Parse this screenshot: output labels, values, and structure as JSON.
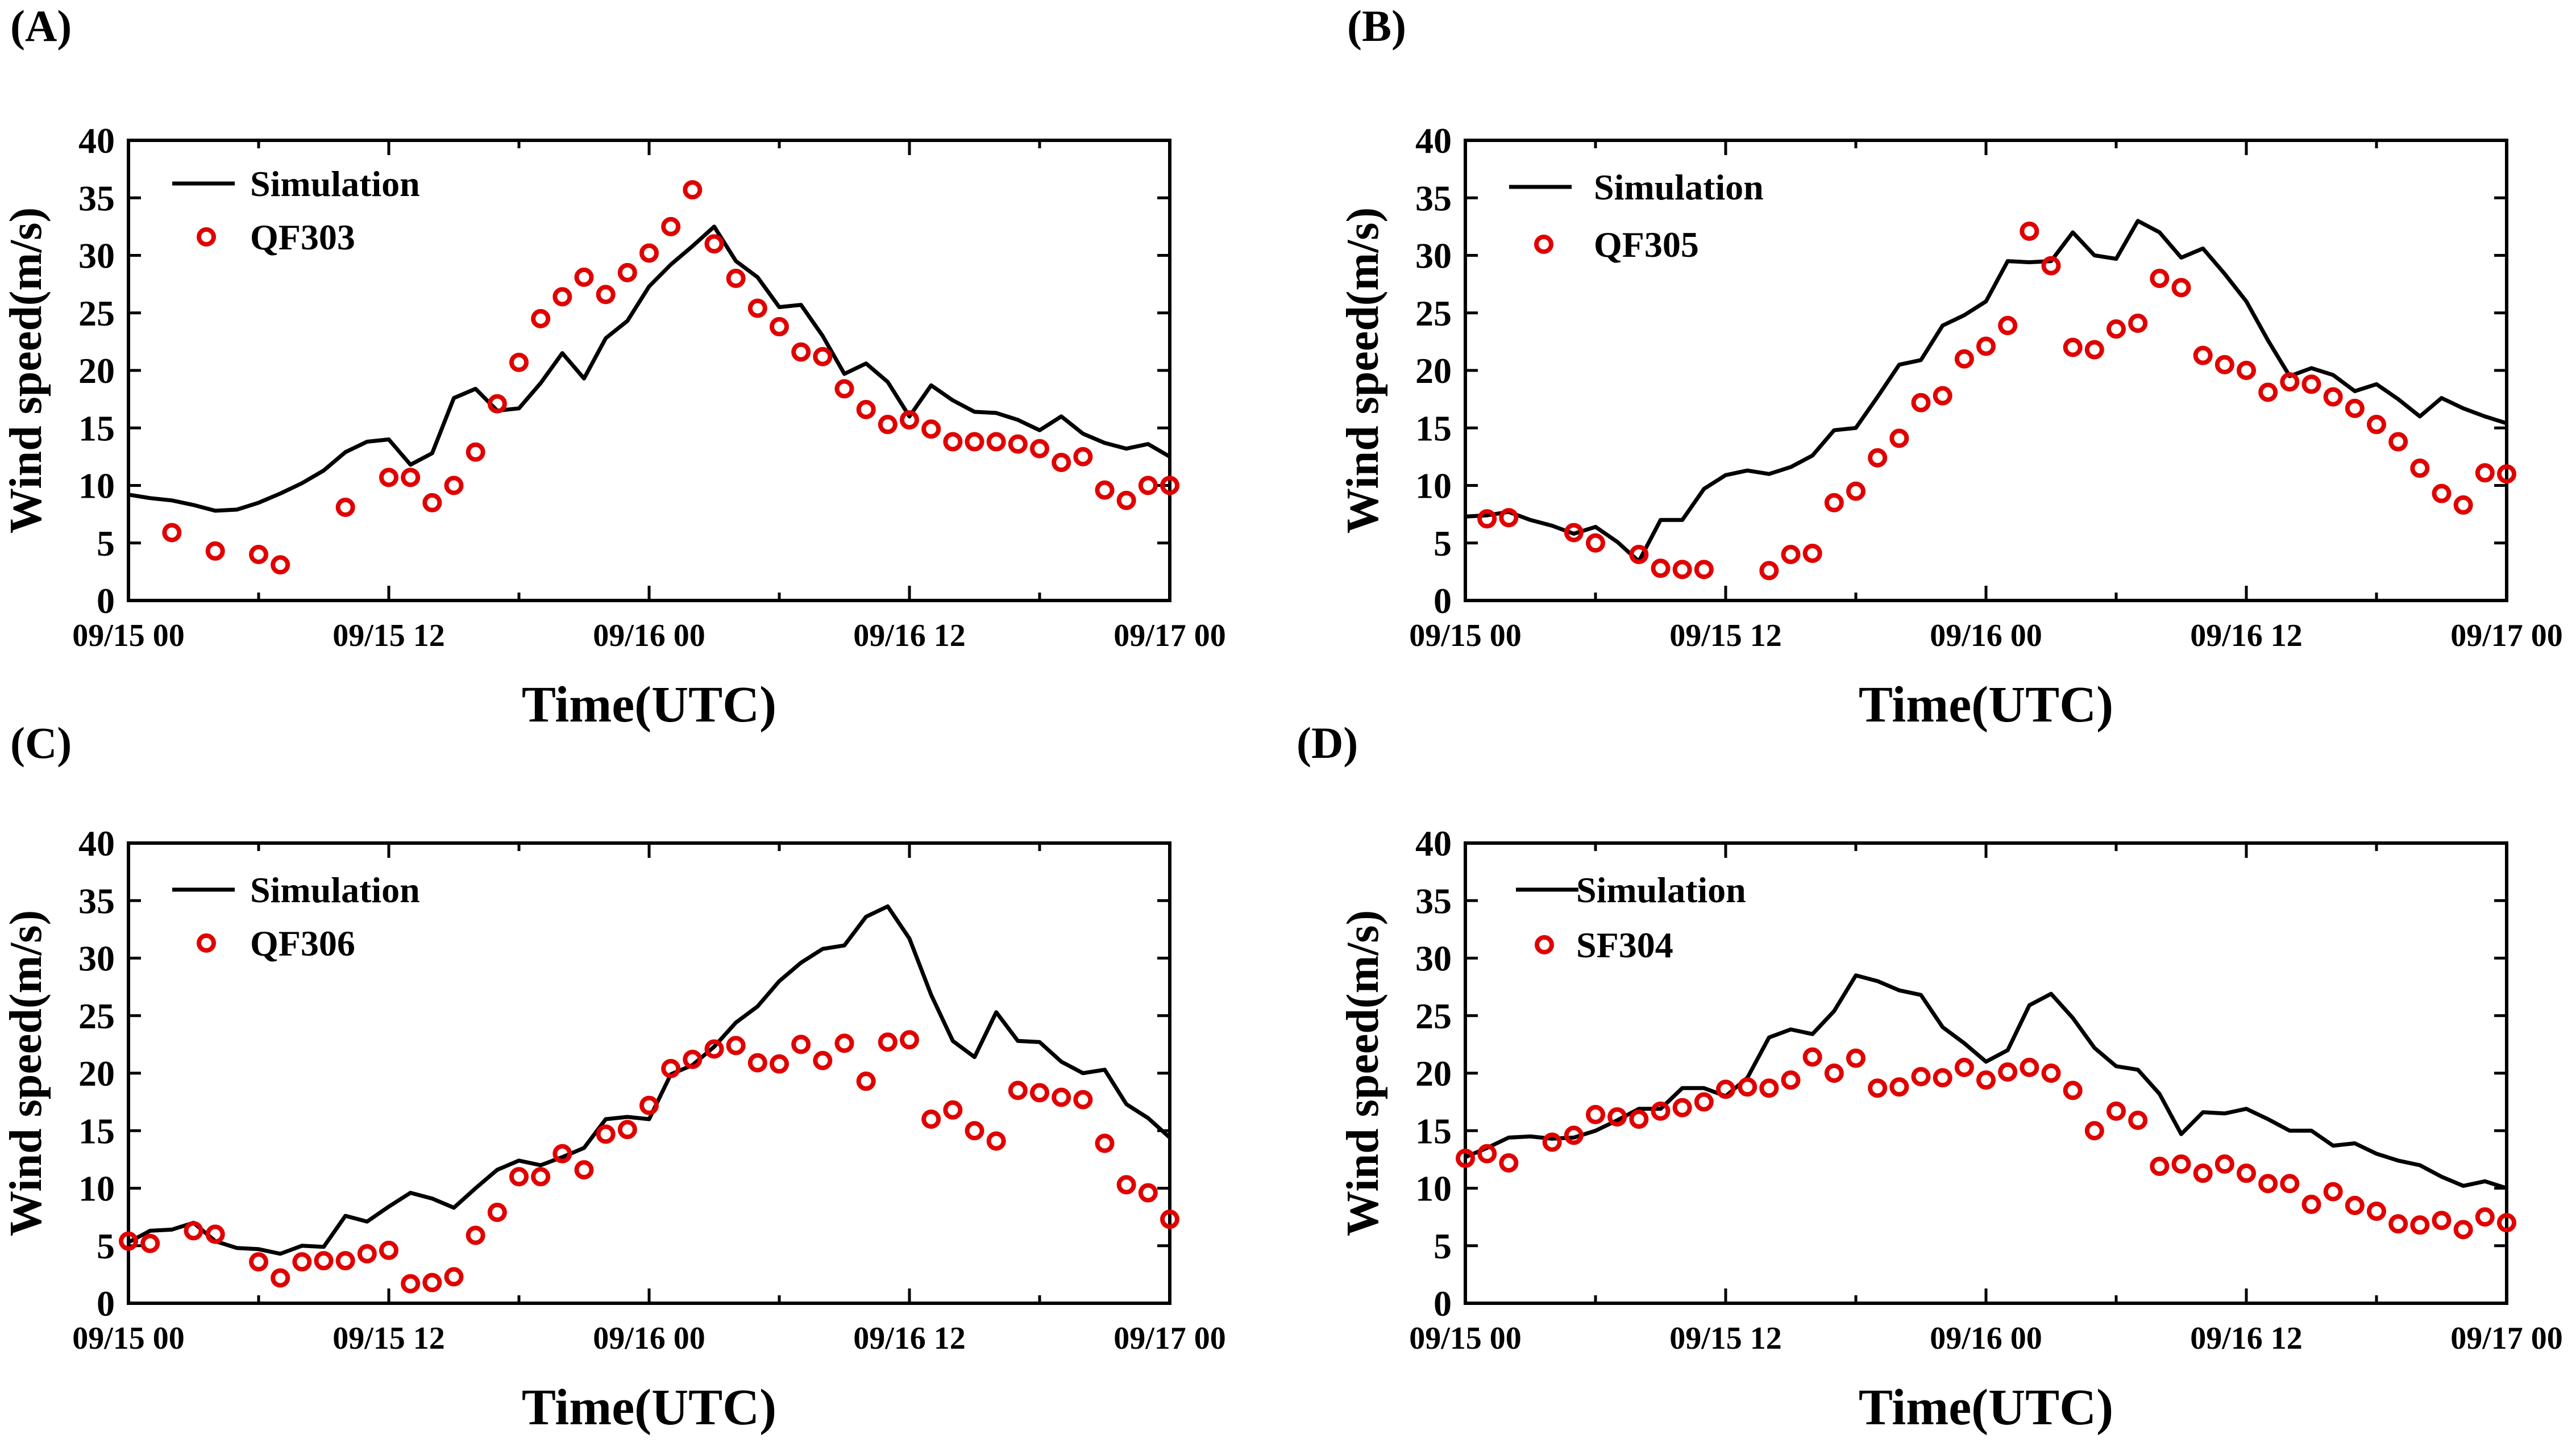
{
  "colors": {
    "simulation": "#000000",
    "observation": "#e00000",
    "axis": "#000000",
    "background": "#ffffff"
  },
  "chart_data": [
    {
      "type": "line",
      "panel_label": "(A)",
      "xlabel": "Time(UTC)",
      "ylabel": "Wind speed(m/s)",
      "xlim": [
        0,
        48
      ],
      "ylim": [
        0,
        40
      ],
      "yticks": [
        0,
        5,
        10,
        15,
        20,
        25,
        30,
        35,
        40
      ],
      "xtick_values": [
        0,
        12,
        24,
        36,
        48
      ],
      "xtick_labels": [
        "09/15 00",
        "09/15 12",
        "09/16 00",
        "09/16 12",
        "09/17 00"
      ],
      "legend": [
        "Simulation",
        "QF303"
      ],
      "legend_position": "top-left",
      "series": [
        {
          "name": "Simulation",
          "style": "line",
          "x": [
            0,
            1,
            2,
            3,
            4,
            5,
            6,
            7,
            8,
            9,
            10,
            11,
            12,
            13,
            14,
            15,
            16,
            17,
            18,
            19,
            20,
            21,
            22,
            23,
            24,
            25,
            26,
            27,
            28,
            29,
            30,
            31,
            32,
            33,
            34,
            35,
            36,
            37,
            38,
            39,
            40,
            41,
            42,
            43,
            44,
            45,
            46,
            47,
            48
          ],
          "y": [
            9.2,
            8.9,
            8.7,
            8.3,
            7.8,
            7.9,
            8.5,
            9.3,
            10.2,
            11.3,
            12.9,
            13.8,
            14,
            11.8,
            12.8,
            17.6,
            18.4,
            16.5,
            16.7,
            18.9,
            21.5,
            19.3,
            22.8,
            24.3,
            27.3,
            29.2,
            30.8,
            32.5,
            29.5,
            28.1,
            25.5,
            25.7,
            23,
            19.7,
            20.6,
            19,
            16,
            18.7,
            17.4,
            16.4,
            16.3,
            15.7,
            14.8,
            16,
            14.5,
            13.7,
            13.2,
            13.6,
            12.5
          ]
        },
        {
          "name": "QF303",
          "style": "markers",
          "x": [
            2,
            4,
            6,
            7,
            10,
            12,
            13,
            14,
            15,
            16,
            17,
            18,
            19,
            20,
            21,
            22,
            23,
            24,
            25,
            26,
            27,
            28,
            29,
            30,
            31,
            32,
            33,
            34,
            35,
            36,
            37,
            38,
            39,
            40,
            41,
            42,
            43,
            44,
            45,
            46,
            47,
            48
          ],
          "y": [
            5.9,
            4.3,
            4,
            3.1,
            8.1,
            10.7,
            10.7,
            8.5,
            10,
            12.9,
            17.1,
            20.7,
            24.5,
            26.4,
            28.1,
            26.6,
            28.5,
            30.2,
            32.5,
            35.7,
            31,
            28,
            25.4,
            23.8,
            21.6,
            21.2,
            18.4,
            16.6,
            15.3,
            15.7,
            14.9,
            13.8,
            13.8,
            13.8,
            13.6,
            13.2,
            12,
            12.5,
            9.6,
            8.7,
            10,
            10
          ]
        }
      ]
    },
    {
      "type": "line",
      "panel_label": "(B)",
      "xlabel": "Time(UTC)",
      "ylabel": "Wind speed(m/s)",
      "xlim": [
        0,
        48
      ],
      "ylim": [
        0,
        40
      ],
      "yticks": [
        0,
        5,
        10,
        15,
        20,
        25,
        30,
        35,
        40
      ],
      "xtick_values": [
        0,
        12,
        24,
        36,
        48
      ],
      "xtick_labels": [
        "09/15 00",
        "09/15 12",
        "09/16 00",
        "09/16 12",
        "09/17 00"
      ],
      "legend": [
        "Simulation",
        "QF305"
      ],
      "legend_position": "top-left",
      "series": [
        {
          "name": "Simulation",
          "style": "line",
          "x": [
            0,
            1,
            2,
            3,
            4,
            5,
            6,
            7,
            8,
            9,
            10,
            11,
            12,
            13,
            14,
            15,
            16,
            17,
            18,
            19,
            20,
            21,
            22,
            23,
            24,
            25,
            26,
            27,
            28,
            29,
            30,
            31,
            32,
            33,
            34,
            35,
            36,
            37,
            38,
            39,
            40,
            41,
            42,
            43,
            44,
            45,
            46,
            47,
            48
          ],
          "y": [
            7.3,
            7.4,
            7.7,
            7,
            6.5,
            5.8,
            6.4,
            5.1,
            3.4,
            7,
            7,
            9.7,
            10.9,
            11.3,
            11,
            11.6,
            12.6,
            14.8,
            15,
            17.7,
            20.5,
            20.9,
            23.9,
            24.8,
            26,
            29.5,
            29.4,
            29.5,
            32,
            30,
            29.7,
            33,
            32,
            29.8,
            30.6,
            28.4,
            26,
            22.6,
            19.5,
            20.2,
            19.6,
            18.2,
            18.8,
            17.5,
            16,
            17.6,
            16.7,
            16,
            15.4
          ]
        },
        {
          "name": "QF305",
          "style": "markers",
          "x": [
            1,
            2,
            5,
            6,
            8,
            9,
            10,
            11,
            14,
            15,
            16,
            17,
            18,
            19,
            20,
            21,
            22,
            23,
            24,
            25,
            26,
            27,
            28,
            29,
            30,
            31,
            32,
            33,
            34,
            35,
            36,
            37,
            38,
            39,
            40,
            41,
            42,
            43,
            44,
            45,
            46,
            47,
            48
          ],
          "y": [
            7.1,
            7.2,
            5.9,
            5,
            4,
            2.8,
            2.7,
            2.7,
            2.6,
            4,
            4.1,
            8.5,
            9.5,
            12.4,
            14.1,
            17.2,
            17.8,
            21,
            22.1,
            23.9,
            32.1,
            29.1,
            22,
            21.8,
            23.6,
            24.1,
            28,
            27.2,
            21.3,
            20.5,
            20,
            18.1,
            19,
            18.8,
            17.7,
            16.7,
            15.3,
            13.8,
            11.5,
            9.3,
            8.3,
            11.1,
            11
          ]
        }
      ]
    },
    {
      "type": "line",
      "panel_label": "(C)",
      "xlabel": "Time(UTC)",
      "ylabel": "Wind speed(m/s)",
      "xlim": [
        0,
        48
      ],
      "ylim": [
        0,
        40
      ],
      "yticks": [
        0,
        5,
        10,
        15,
        20,
        25,
        30,
        35,
        40
      ],
      "xtick_values": [
        0,
        12,
        24,
        36,
        48
      ],
      "xtick_labels": [
        "09/15 00",
        "09/15 12",
        "09/16 00",
        "09/16 12",
        "09/17 00"
      ],
      "legend": [
        "Simulation",
        "QF306"
      ],
      "legend_position": "top-left",
      "series": [
        {
          "name": "Simulation",
          "style": "line",
          "x": [
            0,
            1,
            2,
            3,
            4,
            5,
            6,
            7,
            8,
            9,
            10,
            11,
            12,
            13,
            14,
            15,
            16,
            17,
            18,
            19,
            20,
            21,
            22,
            23,
            24,
            25,
            26,
            27,
            28,
            29,
            30,
            31,
            32,
            33,
            34,
            35,
            36,
            37,
            38,
            39,
            40,
            41,
            42,
            43,
            44,
            45,
            46,
            47,
            48
          ],
          "y": [
            5.3,
            6.3,
            6.4,
            7,
            5.4,
            4.8,
            4.7,
            4.3,
            5,
            4.9,
            7.6,
            7.1,
            8.4,
            9.6,
            9.1,
            8.3,
            10,
            11.6,
            12.4,
            12,
            12.7,
            13.5,
            16,
            16.2,
            16,
            19.9,
            20.7,
            22.3,
            24.4,
            25.8,
            28,
            29.6,
            30.8,
            31.1,
            33.6,
            34.5,
            31.7,
            26.8,
            22.8,
            21.4,
            25.3,
            22.8,
            22.7,
            21,
            20,
            20.3,
            17.3,
            16.1,
            14.4
          ]
        },
        {
          "name": "QF306",
          "style": "markers",
          "x": [
            0,
            1,
            3,
            4,
            6,
            7,
            8,
            9,
            10,
            11,
            12,
            13,
            14,
            15,
            16,
            17,
            18,
            19,
            20,
            21,
            22,
            23,
            24,
            25,
            26,
            27,
            28,
            29,
            30,
            31,
            32,
            33,
            34,
            35,
            36,
            37,
            38,
            39,
            40,
            41,
            42,
            43,
            44,
            45,
            46,
            47,
            48
          ],
          "y": [
            5.4,
            5.2,
            6.3,
            6,
            3.6,
            2.2,
            3.6,
            3.7,
            3.7,
            4.3,
            4.6,
            1.7,
            1.8,
            2.3,
            5.9,
            7.9,
            11,
            11,
            13,
            11.6,
            14.7,
            15.1,
            17.2,
            20.4,
            21.2,
            22.1,
            22.4,
            20.9,
            20.8,
            22.5,
            21.1,
            22.6,
            19.3,
            22.7,
            22.9,
            16,
            16.8,
            15,
            14.1,
            18.5,
            18.3,
            17.9,
            17.7,
            13.9,
            10.3,
            9.6,
            7.3
          ]
        }
      ]
    },
    {
      "type": "line",
      "panel_label": "(D)",
      "xlabel": "Time(UTC)",
      "ylabel": "Wind speed(m/s)",
      "xlim": [
        0,
        48
      ],
      "ylim": [
        0,
        40
      ],
      "yticks": [
        0,
        5,
        10,
        15,
        20,
        25,
        30,
        35,
        40
      ],
      "xtick_values": [
        0,
        12,
        24,
        36,
        48
      ],
      "xtick_labels": [
        "09/15 00",
        "09/15 12",
        "09/16 00",
        "09/16 12",
        "09/17 00"
      ],
      "legend": [
        "Simulation",
        "SF304"
      ],
      "legend_position": "top-left",
      "series": [
        {
          "name": "Simulation",
          "style": "line",
          "x": [
            0,
            1,
            2,
            3,
            4,
            5,
            6,
            7,
            8,
            9,
            10,
            11,
            12,
            13,
            14,
            15,
            16,
            17,
            18,
            19,
            20,
            21,
            22,
            23,
            24,
            25,
            26,
            27,
            28,
            29,
            30,
            31,
            32,
            33,
            34,
            35,
            36,
            37,
            38,
            39,
            40,
            41,
            42,
            43,
            44,
            45,
            46,
            47,
            48
          ],
          "y": [
            12.7,
            13.5,
            14.4,
            14.5,
            14.3,
            14.4,
            15,
            15.9,
            16.9,
            16.9,
            18.7,
            18.7,
            18,
            19.6,
            23.1,
            23.8,
            23.4,
            25.4,
            28.5,
            28,
            27.2,
            26.8,
            24,
            22.6,
            21,
            22,
            25.9,
            26.9,
            24.8,
            22.2,
            20.6,
            20.3,
            18.2,
            14.7,
            16.6,
            16.5,
            16.9,
            16,
            15,
            15,
            13.7,
            13.9,
            13,
            12.4,
            12,
            11,
            10.2,
            10.6,
            10
          ]
        },
        {
          "name": "SF304",
          "style": "markers",
          "x": [
            0,
            1,
            2,
            4,
            5,
            6,
            7,
            8,
            9,
            10,
            11,
            12,
            13,
            14,
            15,
            16,
            17,
            18,
            19,
            20,
            21,
            22,
            23,
            24,
            25,
            26,
            27,
            28,
            29,
            30,
            31,
            32,
            33,
            34,
            35,
            36,
            37,
            38,
            39,
            40,
            41,
            42,
            43,
            44,
            45,
            46,
            47,
            48
          ],
          "y": [
            12.6,
            13,
            12.2,
            14,
            14.6,
            16.4,
            16.2,
            16,
            16.7,
            17,
            17.5,
            18.6,
            18.8,
            18.7,
            19.4,
            21.4,
            20,
            21.3,
            18.7,
            18.8,
            19.7,
            19.6,
            20.5,
            19.4,
            20.1,
            20.5,
            20,
            18.5,
            15,
            16.7,
            15.9,
            11.9,
            12.1,
            11.3,
            12.1,
            11.3,
            10.4,
            10.4,
            8.6,
            9.7,
            8.5,
            8,
            6.9,
            6.8,
            7.2,
            6.4,
            7.5,
            7
          ]
        }
      ]
    }
  ]
}
